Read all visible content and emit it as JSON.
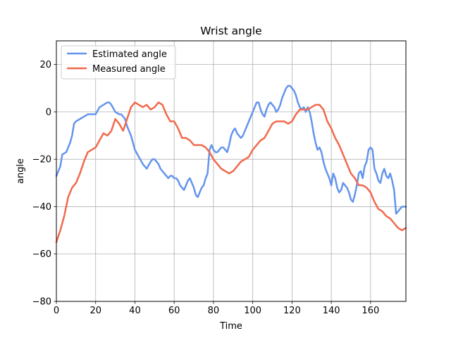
{
  "chart_data": {
    "type": "line",
    "title": "Wrist angle",
    "xlabel": "Time",
    "ylabel": "angle",
    "xlim": [
      0,
      178
    ],
    "ylim": [
      -80,
      30
    ],
    "xticks": [
      0,
      20,
      40,
      60,
      80,
      100,
      120,
      140,
      160
    ],
    "yticks": [
      -80,
      -60,
      -40,
      -20,
      0,
      20
    ],
    "grid": true,
    "legend_position": "top-left",
    "series": [
      {
        "name": "Estimated angle",
        "color": "#6495ED",
        "x": [
          0,
          2,
          3,
          5,
          7,
          8,
          9,
          10,
          12,
          14,
          16,
          18,
          20,
          22,
          24,
          26,
          27,
          28,
          30,
          32,
          33,
          34,
          35,
          36,
          38,
          40,
          42,
          44,
          46,
          48,
          49,
          50,
          51,
          52,
          53,
          54,
          55,
          56,
          57,
          58,
          59,
          60,
          61,
          62,
          63,
          64,
          65,
          66,
          67,
          68,
          69,
          70,
          71,
          72,
          73,
          74,
          75,
          76,
          77,
          78,
          79,
          80,
          81,
          82,
          83,
          84,
          85,
          86,
          87,
          88,
          89,
          90,
          91,
          92,
          93,
          94,
          95,
          96,
          97,
          98,
          99,
          100,
          101,
          102,
          103,
          104,
          105,
          106,
          107,
          108,
          109,
          110,
          111,
          112,
          113,
          114,
          115,
          116,
          117,
          118,
          119,
          120,
          121,
          122,
          123,
          124,
          125,
          126,
          127,
          128,
          129,
          130,
          131,
          132,
          133,
          134,
          135,
          136,
          137,
          138,
          139,
          140,
          141,
          142,
          143,
          144,
          145,
          146,
          147,
          148,
          149,
          150,
          151,
          152,
          153,
          154,
          155,
          156,
          157,
          158,
          159,
          160,
          161,
          162,
          163,
          164,
          165,
          166,
          167,
          168,
          169,
          170,
          171,
          172,
          173,
          174,
          175,
          176,
          177,
          178
        ],
        "y": [
          -27,
          -23,
          -18,
          -17,
          -13,
          -10,
          -5,
          -4,
          -3,
          -2,
          -1,
          -1,
          -1,
          2,
          3,
          4,
          4,
          3,
          0,
          -1,
          -1,
          -2,
          -3,
          -6,
          -10,
          -16,
          -19,
          -22,
          -24,
          -21,
          -20,
          -20,
          -21,
          -22,
          -24,
          -25,
          -26,
          -27,
          -28,
          -27,
          -27,
          -28,
          -28,
          -29,
          -31,
          -32,
          -33,
          -31,
          -29,
          -28,
          -30,
          -32,
          -35,
          -36,
          -34,
          -32,
          -31,
          -28,
          -26,
          -16,
          -14,
          -16,
          -17,
          -17,
          -16,
          -15,
          -15,
          -16,
          -17,
          -14,
          -10,
          -8,
          -7,
          -9,
          -10,
          -11,
          -10,
          -8,
          -6,
          -4,
          -2,
          0,
          2,
          4,
          4,
          1,
          -1,
          -2,
          1,
          3,
          4,
          3,
          2,
          0,
          1,
          3,
          6,
          8,
          10,
          11,
          11,
          10,
          9,
          7,
          4,
          2,
          1,
          2,
          0,
          2,
          0,
          -4,
          -9,
          -13,
          -16,
          -15,
          -17,
          -21,
          -24,
          -26,
          -28,
          -31,
          -26,
          -28,
          -32,
          -34,
          -33,
          -30,
          -31,
          -32,
          -34,
          -37,
          -38,
          -35,
          -31,
          -26,
          -25,
          -28,
          -23,
          -21,
          -16,
          -15,
          -16,
          -24,
          -26,
          -29,
          -30,
          -26,
          -24,
          -27,
          -28,
          -26,
          -29,
          -33,
          -43,
          -42,
          -41,
          -40,
          -40,
          -40
        ]
      },
      {
        "name": "Measured angle",
        "color": "#F2694D",
        "x": [
          0,
          2,
          4,
          6,
          8,
          10,
          12,
          14,
          16,
          18,
          20,
          22,
          24,
          26,
          28,
          30,
          32,
          34,
          36,
          38,
          40,
          42,
          44,
          46,
          48,
          50,
          52,
          54,
          56,
          58,
          60,
          62,
          64,
          66,
          68,
          70,
          72,
          74,
          76,
          78,
          80,
          82,
          84,
          86,
          88,
          90,
          92,
          94,
          96,
          98,
          100,
          102,
          104,
          106,
          108,
          110,
          112,
          114,
          116,
          118,
          120,
          122,
          124,
          126,
          128,
          130,
          132,
          134,
          136,
          138,
          140,
          142,
          144,
          146,
          148,
          150,
          152,
          154,
          156,
          158,
          160,
          162,
          164,
          166,
          168,
          170,
          172,
          174,
          176,
          178
        ],
        "y": [
          -55,
          -50,
          -44,
          -36,
          -32,
          -30,
          -26,
          -21,
          -17,
          -16,
          -15,
          -12,
          -9,
          -10,
          -8,
          -3,
          -5,
          -8,
          -3,
          2,
          4,
          3,
          2,
          3,
          1,
          2,
          4,
          3,
          -1,
          -4,
          -4,
          -7,
          -11,
          -11,
          -12,
          -14,
          -14,
          -14,
          -15,
          -17,
          -20,
          -22,
          -24,
          -25,
          -26,
          -25,
          -23,
          -21,
          -20,
          -19,
          -16,
          -14,
          -12,
          -11,
          -8,
          -5,
          -4,
          -4,
          -4,
          -5,
          -4,
          -1,
          1,
          1,
          1,
          2,
          3,
          3,
          1,
          -4,
          -7,
          -11,
          -14,
          -18,
          -22,
          -26,
          -28,
          -31,
          -31,
          -32,
          -34,
          -38,
          -41,
          -42,
          -44,
          -45,
          -47,
          -49,
          -50,
          -49
        ]
      }
    ]
  }
}
